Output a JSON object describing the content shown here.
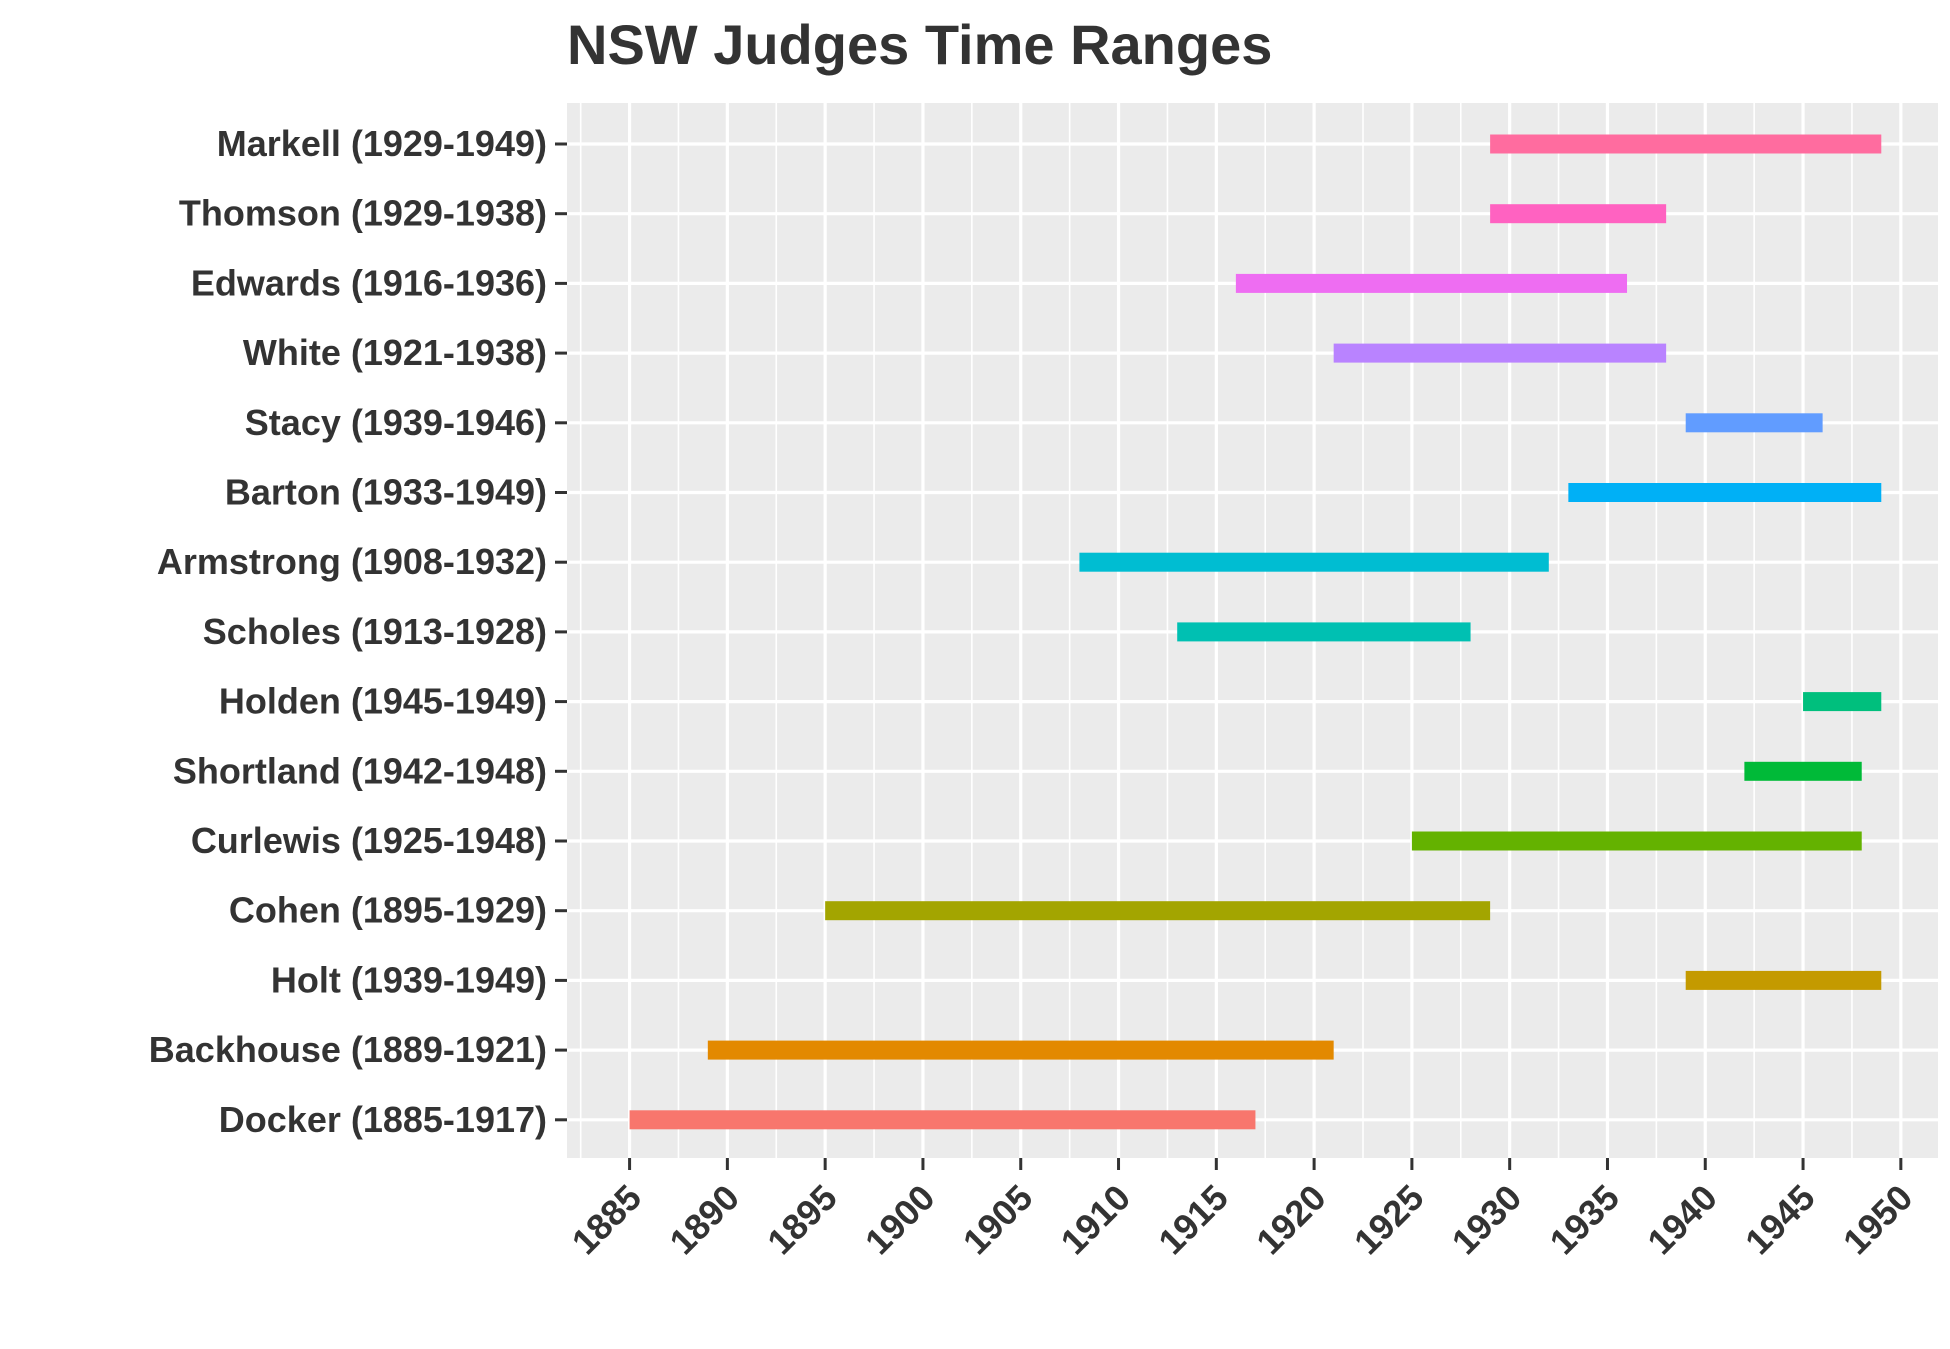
{
  "chart_data": {
    "type": "bar",
    "orientation": "horizontal-range",
    "title": "NSW Judges Time Ranges",
    "xlabel": "",
    "ylabel": "",
    "xlim": [
      1881.8,
      1951.9
    ],
    "x_ticks": [
      1885,
      1890,
      1895,
      1900,
      1905,
      1910,
      1915,
      1920,
      1925,
      1930,
      1935,
      1940,
      1945,
      1950
    ],
    "grid": true,
    "legend": "none",
    "panel_background": "#EBEBEB",
    "series": [
      {
        "label": "Markell (1929-1949)",
        "start": 1929,
        "end": 1949,
        "color": "#FF6C9F"
      },
      {
        "label": "Thomson (1929-1938)",
        "start": 1929,
        "end": 1938,
        "color": "#FF62C1"
      },
      {
        "label": "Edwards (1916-1936)",
        "start": 1916,
        "end": 1936,
        "color": "#EE6DF2"
      },
      {
        "label": "White (1921-1938)",
        "start": 1921,
        "end": 1938,
        "color": "#B983FF"
      },
      {
        "label": "Stacy (1939-1946)",
        "start": 1939,
        "end": 1946,
        "color": "#619CFF"
      },
      {
        "label": "Barton (1933-1949)",
        "start": 1933,
        "end": 1949,
        "color": "#00B0F6"
      },
      {
        "label": "Armstrong (1908-1932)",
        "start": 1908,
        "end": 1932,
        "color": "#00BDD2"
      },
      {
        "label": "Scholes (1913-1928)",
        "start": 1913,
        "end": 1928,
        "color": "#00C0B2"
      },
      {
        "label": "Holden (1945-1949)",
        "start": 1945,
        "end": 1949,
        "color": "#00BF7D"
      },
      {
        "label": "Shortland (1942-1948)",
        "start": 1942,
        "end": 1948,
        "color": "#00BA38"
      },
      {
        "label": "Curlewis (1925-1948)",
        "start": 1925,
        "end": 1948,
        "color": "#64B200"
      },
      {
        "label": "Cohen (1895-1929)",
        "start": 1895,
        "end": 1929,
        "color": "#A3A500"
      },
      {
        "label": "Holt (1939-1949)",
        "start": 1939,
        "end": 1949,
        "color": "#C49A00"
      },
      {
        "label": "Backhouse (1889-1921)",
        "start": 1889,
        "end": 1921,
        "color": "#E38900"
      },
      {
        "label": "Docker (1885-1917)",
        "start": 1885,
        "end": 1917,
        "color": "#F8766D"
      }
    ]
  }
}
